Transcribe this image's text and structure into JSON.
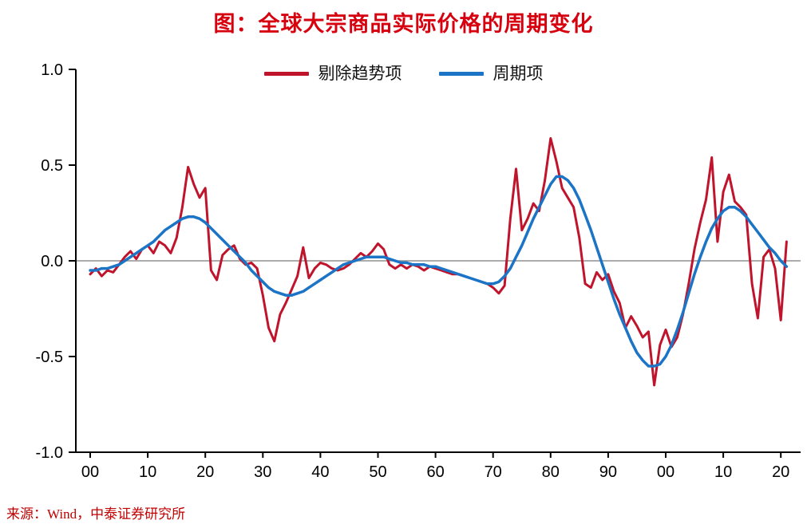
{
  "title": "图：全球大宗商品实际价格的周期变化",
  "source": "来源：Wind，中泰证券研究所",
  "colors": {
    "title_red": "#d7000f",
    "series_red": "#c0142c",
    "series_blue": "#1b74c5",
    "zero_line_gray": "#909090",
    "axis_black": "#000000"
  },
  "chart_data": {
    "type": "line",
    "title": "图：全球大宗商品实际价格的周期变化",
    "x_frequency": "annual",
    "x_range": [
      1900,
      2021
    ],
    "x_tick_labels": [
      "00",
      "10",
      "20",
      "30",
      "40",
      "50",
      "60",
      "70",
      "80",
      "90",
      "00",
      "10",
      "20"
    ],
    "y_ticks": [
      1.0,
      0.5,
      0.0,
      -0.5,
      -1.0
    ],
    "y_tick_labels": [
      "1.0",
      "0.5",
      "0.0",
      "-0.5",
      "-1.0"
    ],
    "ylim": [
      -1.0,
      1.0
    ],
    "grid": false,
    "zero_line": true,
    "legend_position": "top-center",
    "series": [
      {
        "name": "剔除趋势项",
        "color": "#c0142c",
        "values": [
          -0.07,
          -0.04,
          -0.08,
          -0.05,
          -0.06,
          -0.02,
          0.02,
          0.05,
          0.01,
          0.06,
          0.08,
          0.04,
          0.1,
          0.08,
          0.04,
          0.12,
          0.28,
          0.49,
          0.4,
          0.33,
          0.38,
          -0.05,
          -0.1,
          0.03,
          0.06,
          0.08,
          0.01,
          -0.02,
          -0.01,
          -0.04,
          -0.18,
          -0.35,
          -0.42,
          -0.28,
          -0.22,
          -0.15,
          -0.08,
          0.07,
          -0.09,
          -0.04,
          -0.01,
          -0.02,
          -0.04,
          -0.05,
          -0.04,
          -0.02,
          0.01,
          0.04,
          0.02,
          0.05,
          0.09,
          0.06,
          -0.02,
          -0.04,
          -0.02,
          -0.04,
          -0.02,
          -0.03,
          -0.05,
          -0.03,
          -0.04,
          -0.05,
          -0.06,
          -0.07,
          -0.07,
          -0.08,
          -0.09,
          -0.1,
          -0.11,
          -0.12,
          -0.14,
          -0.17,
          -0.13,
          0.22,
          0.48,
          0.16,
          0.22,
          0.3,
          0.26,
          0.42,
          0.64,
          0.52,
          0.38,
          0.33,
          0.28,
          0.12,
          -0.12,
          -0.14,
          -0.06,
          -0.1,
          -0.07,
          -0.16,
          -0.22,
          -0.35,
          -0.29,
          -0.34,
          -0.4,
          -0.37,
          -0.65,
          -0.44,
          -0.36,
          -0.45,
          -0.4,
          -0.28,
          -0.12,
          0.06,
          0.2,
          0.32,
          0.54,
          0.1,
          0.36,
          0.45,
          0.31,
          0.28,
          0.24,
          -0.12,
          -0.3,
          0.02,
          0.06,
          -0.04,
          -0.31,
          0.1
        ]
      },
      {
        "name": "周期项",
        "color": "#1b74c5",
        "values": [
          -0.05,
          -0.05,
          -0.04,
          -0.04,
          -0.03,
          -0.02,
          0.0,
          0.02,
          0.04,
          0.06,
          0.08,
          0.1,
          0.13,
          0.16,
          0.18,
          0.2,
          0.22,
          0.23,
          0.23,
          0.22,
          0.2,
          0.17,
          0.14,
          0.11,
          0.08,
          0.05,
          0.02,
          -0.01,
          -0.05,
          -0.08,
          -0.11,
          -0.14,
          -0.16,
          -0.17,
          -0.18,
          -0.18,
          -0.17,
          -0.16,
          -0.14,
          -0.12,
          -0.1,
          -0.08,
          -0.06,
          -0.04,
          -0.02,
          -0.01,
          0.0,
          0.01,
          0.02,
          0.02,
          0.02,
          0.02,
          0.01,
          0.0,
          -0.01,
          -0.01,
          -0.02,
          -0.02,
          -0.02,
          -0.03,
          -0.03,
          -0.04,
          -0.05,
          -0.06,
          -0.07,
          -0.08,
          -0.09,
          -0.1,
          -0.11,
          -0.12,
          -0.12,
          -0.11,
          -0.08,
          -0.04,
          0.02,
          0.08,
          0.15,
          0.22,
          0.28,
          0.34,
          0.4,
          0.44,
          0.44,
          0.42,
          0.38,
          0.32,
          0.24,
          0.16,
          0.07,
          -0.02,
          -0.11,
          -0.2,
          -0.28,
          -0.35,
          -0.42,
          -0.48,
          -0.52,
          -0.55,
          -0.55,
          -0.54,
          -0.5,
          -0.44,
          -0.36,
          -0.27,
          -0.17,
          -0.07,
          0.02,
          0.1,
          0.17,
          0.22,
          0.26,
          0.28,
          0.28,
          0.26,
          0.23,
          0.19,
          0.15,
          0.11,
          0.07,
          0.04,
          0.0,
          -0.03
        ]
      }
    ]
  }
}
